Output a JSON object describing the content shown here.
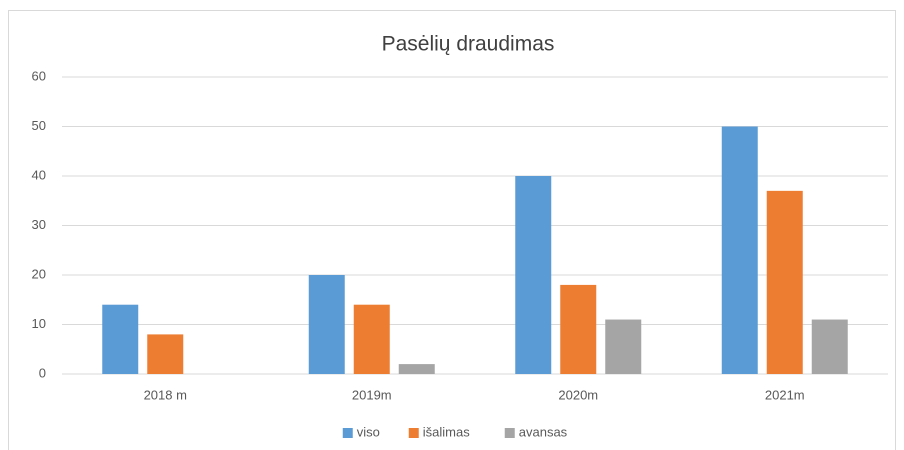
{
  "chart_data": {
    "type": "bar",
    "title": "Pasėlių draudimas",
    "categories": [
      "2018 m",
      "2019m",
      "2020m",
      "2021m"
    ],
    "series": [
      {
        "name": "viso",
        "color": "#5b9bd5",
        "values": [
          14,
          20,
          40,
          50
        ]
      },
      {
        "name": "išalimas",
        "color": "#ed7d31",
        "values": [
          8,
          14,
          18,
          37
        ]
      },
      {
        "name": "avansas",
        "color": "#a5a5a5",
        "values": [
          0,
          2,
          11,
          11
        ]
      }
    ],
    "ylim": [
      0,
      60
    ],
    "yticks": [
      0,
      10,
      20,
      30,
      40,
      50,
      60
    ],
    "grid": true,
    "legend": "bottom"
  }
}
